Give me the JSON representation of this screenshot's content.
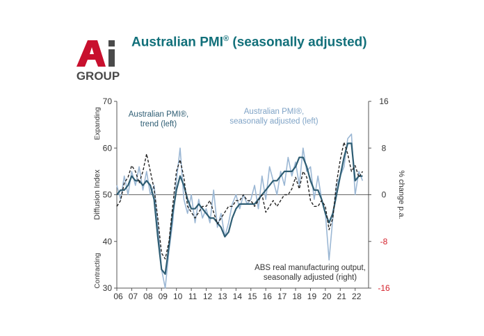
{
  "logo": {
    "letters": "Ai",
    "word": "GROUP",
    "colors": {
      "a": "#c8102e",
      "i": "#4a4a4a",
      "group": "#4a4a4a"
    }
  },
  "title": {
    "main": "Australian PMI",
    "mark": "®",
    "rest": " (seasonally adjusted)"
  },
  "colors": {
    "title": "#12707a",
    "trend": "#2e5d73",
    "sa": "#9bb7d4",
    "abs": "#222222",
    "negative_tick": "#d4202a",
    "text": "#333333"
  },
  "chart_data": {
    "type": "line",
    "x_tick_labels": [
      "06",
      "07",
      "08",
      "09",
      "10",
      "11",
      "12",
      "13",
      "14",
      "15",
      "16",
      "17",
      "18",
      "19",
      "20",
      "21",
      "22"
    ],
    "xlim": [
      2006.0,
      2022.9
    ],
    "left_axis": {
      "label": "Diffusion Index",
      "ylim": [
        30,
        70
      ],
      "ticks": [
        30,
        40,
        50,
        60,
        70
      ],
      "top_label": "Expanding",
      "bottom_label": "Contracting"
    },
    "right_axis": {
      "label": "% change p.a.",
      "ylim": [
        -16,
        16
      ],
      "ticks": [
        16,
        8,
        0,
        -8,
        -16
      ]
    },
    "grid": false,
    "reference_line": {
      "axis": "right",
      "value": 0
    },
    "series": [
      {
        "name": "Australian PMI®, seasonally adjusted (left)",
        "axis": "left",
        "x": [
          2006.0,
          2006.25,
          2006.5,
          2006.75,
          2007.0,
          2007.25,
          2007.5,
          2007.75,
          2008.0,
          2008.25,
          2008.5,
          2008.75,
          2009.0,
          2009.25,
          2009.5,
          2009.75,
          2010.0,
          2010.25,
          2010.5,
          2010.75,
          2011.0,
          2011.25,
          2011.5,
          2011.75,
          2012.0,
          2012.25,
          2012.5,
          2012.75,
          2013.0,
          2013.25,
          2013.5,
          2013.75,
          2014.0,
          2014.25,
          2014.5,
          2014.75,
          2015.0,
          2015.25,
          2015.5,
          2015.75,
          2016.0,
          2016.25,
          2016.5,
          2016.75,
          2017.0,
          2017.25,
          2017.5,
          2017.75,
          2018.0,
          2018.25,
          2018.5,
          2018.75,
          2019.0,
          2019.25,
          2019.5,
          2019.75,
          2020.0,
          2020.25,
          2020.5,
          2020.75,
          2021.0,
          2021.25,
          2021.5,
          2021.75,
          2022.0,
          2022.25,
          2022.5
        ],
        "y": [
          52,
          49,
          54,
          50,
          55,
          52,
          56,
          51,
          55,
          50,
          52,
          44,
          34,
          30,
          38,
          44,
          53,
          60,
          49,
          46,
          50,
          44,
          49,
          45,
          47,
          44,
          51,
          43,
          46,
          41,
          44,
          48,
          50,
          47,
          50,
          48,
          49,
          52,
          47,
          54,
          49,
          56,
          53,
          50,
          55,
          52,
          58,
          54,
          57,
          52,
          60,
          55,
          56,
          49,
          54,
          49,
          46,
          36,
          45,
          52,
          54,
          56,
          62,
          63,
          50,
          55,
          53
        ]
      },
      {
        "name": "Australian PMI®, trend (left)",
        "axis": "left",
        "x": [
          2006.0,
          2006.25,
          2006.5,
          2006.75,
          2007.0,
          2007.25,
          2007.5,
          2007.75,
          2008.0,
          2008.25,
          2008.5,
          2008.75,
          2009.0,
          2009.25,
          2009.5,
          2009.75,
          2010.0,
          2010.25,
          2010.5,
          2010.75,
          2011.0,
          2011.25,
          2011.5,
          2011.75,
          2012.0,
          2012.25,
          2012.5,
          2012.75,
          2013.0,
          2013.25,
          2013.5,
          2013.75,
          2014.0,
          2014.25,
          2014.5,
          2014.75,
          2015.0,
          2015.25,
          2015.5,
          2015.75,
          2016.0,
          2016.25,
          2016.5,
          2016.75,
          2017.0,
          2017.25,
          2017.5,
          2017.75,
          2018.0,
          2018.25,
          2018.5,
          2018.75,
          2019.0,
          2019.25,
          2019.5,
          2019.75,
          2020.0,
          2020.25,
          2020.5,
          2020.75,
          2021.0,
          2021.25,
          2021.5,
          2021.75,
          2022.0,
          2022.25,
          2022.5
        ],
        "y": [
          50,
          51,
          51,
          52,
          54,
          53,
          53,
          52,
          53,
          52,
          49,
          41,
          34,
          33,
          39,
          46,
          51,
          54,
          52,
          49,
          47,
          47,
          48,
          47,
          46,
          45,
          45,
          44,
          43,
          41,
          42,
          45,
          47,
          48,
          48,
          48,
          48,
          48,
          49,
          50,
          51,
          52,
          53,
          53,
          54,
          55,
          55,
          55,
          56,
          58,
          58,
          56,
          53,
          51,
          51,
          49,
          46,
          44,
          46,
          50,
          54,
          58,
          61,
          61,
          53,
          54,
          54
        ]
      },
      {
        "name": "ABS real manufacturing output, seasonally adjusted (right)",
        "axis": "right",
        "x": [
          2006.0,
          2006.25,
          2006.5,
          2006.75,
          2007.0,
          2007.25,
          2007.5,
          2007.75,
          2008.0,
          2008.25,
          2008.5,
          2008.75,
          2009.0,
          2009.25,
          2009.5,
          2009.75,
          2010.0,
          2010.25,
          2010.5,
          2010.75,
          2011.0,
          2011.25,
          2011.5,
          2011.75,
          2012.0,
          2012.25,
          2012.5,
          2012.75,
          2013.0,
          2013.25,
          2013.5,
          2013.75,
          2014.0,
          2014.25,
          2014.5,
          2014.75,
          2015.0,
          2015.25,
          2015.5,
          2015.75,
          2016.0,
          2016.25,
          2016.5,
          2016.75,
          2017.0,
          2017.25,
          2017.5,
          2017.75,
          2018.0,
          2018.25,
          2018.5,
          2018.75,
          2019.0,
          2019.25,
          2019.5,
          2019.75,
          2020.0,
          2020.25,
          2020.5,
          2020.75,
          2021.0,
          2021.25,
          2021.5,
          2021.75,
          2022.0,
          2022.25,
          2022.5
        ],
        "y": [
          -2,
          -1,
          2,
          3,
          5,
          4,
          2,
          4,
          7,
          4,
          1,
          -4,
          -10,
          -11,
          -8,
          -2,
          4,
          6,
          3,
          -2,
          -3,
          -4,
          -3,
          -2,
          -2,
          -1,
          -3,
          -5,
          -4,
          -3,
          -2,
          -2,
          -1,
          -1,
          0,
          -1,
          -1,
          -2,
          -1,
          0,
          -3,
          -2,
          -1,
          -2,
          -1,
          0,
          0,
          1,
          3,
          1,
          4,
          3,
          -1,
          -2,
          -2,
          -1,
          -2,
          -6,
          -4,
          2,
          6,
          9,
          7,
          4,
          5,
          3,
          4
        ]
      }
    ],
    "annotations": [
      {
        "text_lines": [
          "Australian PMI®,",
          "trend (left)"
        ]
      },
      {
        "text_lines": [
          "Australian PMI®,",
          "seasonally adjusted (left)"
        ]
      },
      {
        "text_lines": [
          "ABS real manufacturing output,",
          "seasonally adjusted (right)"
        ]
      }
    ]
  }
}
